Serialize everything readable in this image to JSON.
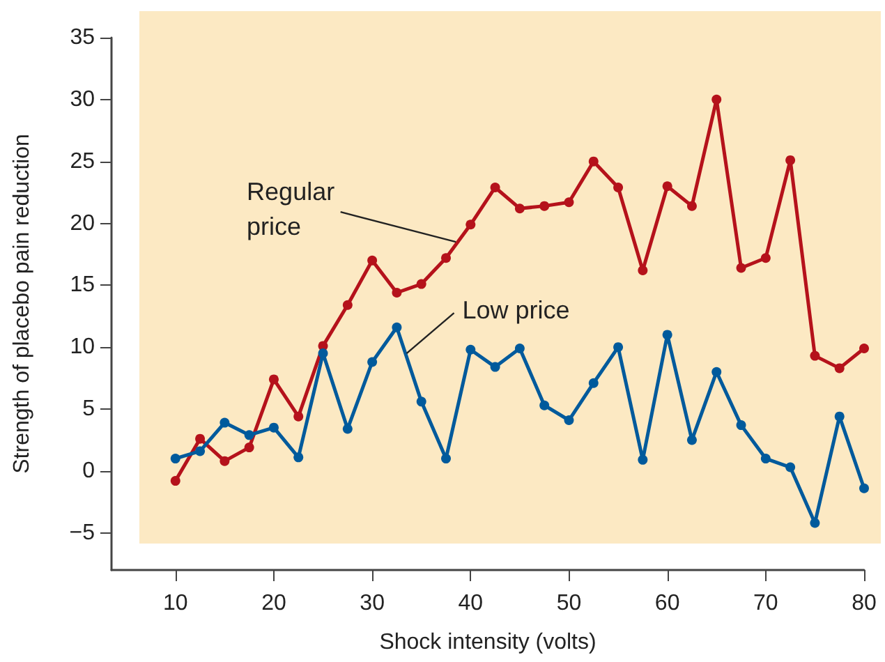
{
  "chart_data": {
    "type": "line",
    "xlabel": "Shock intensity (volts)",
    "ylabel": "Strength of placebo pain reduction",
    "x": [
      10,
      12.5,
      15,
      17.5,
      20,
      22.5,
      25,
      27.5,
      30,
      32.5,
      35,
      37.5,
      40,
      42.5,
      45,
      47.5,
      50,
      52.5,
      55,
      57.5,
      60,
      62.5,
      65,
      67.5,
      70,
      72.5,
      75,
      77.5,
      80
    ],
    "series": [
      {
        "color": "#b5121b",
        "values": [
          -0.8,
          2.6,
          0.8,
          1.9,
          7.4,
          4.4,
          10.1,
          13.4,
          17,
          14.4,
          15.1,
          17.2,
          19.9,
          22.9,
          21.2,
          21.4,
          21.7,
          25,
          22.9,
          16.2,
          23,
          21.4,
          30,
          16.4,
          17.2,
          25.1,
          9.3,
          8.3,
          9.9
        ]
      },
      {
        "color": "#005a9c",
        "values": [
          1,
          1.6,
          3.9,
          2.9,
          3.5,
          1.1,
          9.5,
          3.4,
          8.8,
          11.6,
          5.6,
          1,
          9.8,
          8.4,
          9.9,
          5.3,
          4.1,
          7.1,
          10,
          0.9,
          11,
          2.5,
          8,
          3.7,
          1,
          0.3,
          -4.2,
          4.4,
          -1.4
        ]
      }
    ],
    "annotations": [
      {
        "text": "Regular\nprice",
        "x": 38.5,
        "y": 18.5
      },
      {
        "text": "Low price",
        "x": 33.5,
        "y": 9.5
      }
    ],
    "xlim": [
      3.5,
      80
    ],
    "xticks": [
      10,
      20,
      30,
      40,
      50,
      60,
      70,
      80
    ],
    "ylim": [
      -8,
      35
    ],
    "yticks": [
      -5,
      0,
      5,
      10,
      15,
      20,
      25,
      30,
      35
    ],
    "marker": "circle",
    "line_style": "solid"
  }
}
